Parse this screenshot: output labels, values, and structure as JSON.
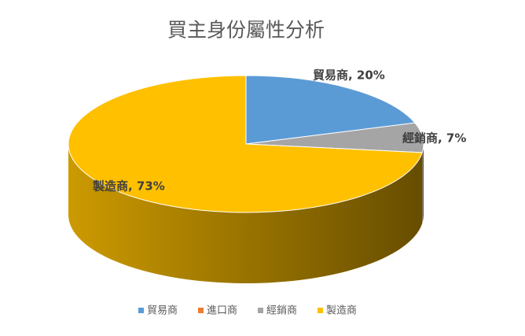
{
  "chart_data": {
    "type": "pie3d",
    "title": "買主身份屬性分析",
    "categories": [
      "貿易商",
      "進口商",
      "經銷商",
      "製造商"
    ],
    "values": [
      20,
      0,
      7,
      73
    ],
    "value_labels": [
      "貿易商, 20%",
      null,
      "經銷商, 7%",
      "製造商, 73%"
    ],
    "colors": [
      "#5b9bd5",
      "#ed7d31",
      "#a5a5a5",
      "#ffc000"
    ],
    "legend": "bottom"
  }
}
